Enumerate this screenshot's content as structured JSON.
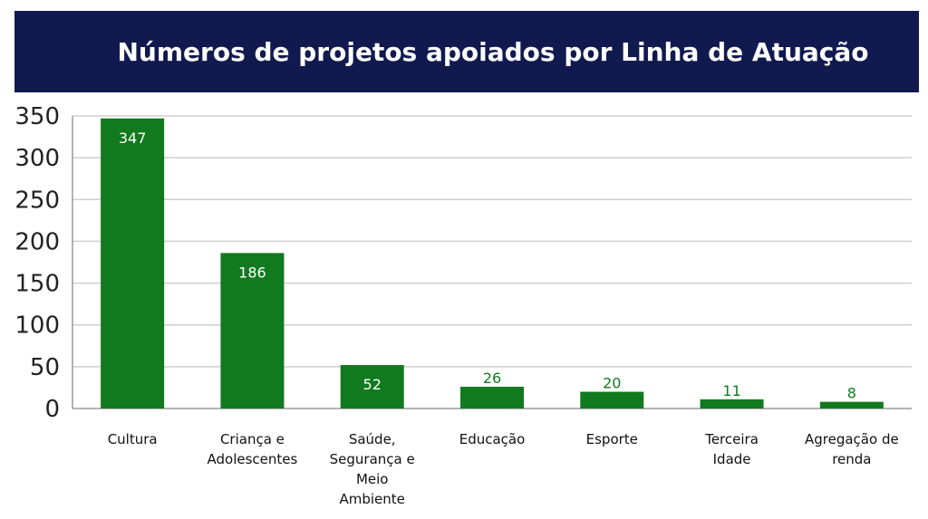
{
  "chart_data": {
    "type": "bar",
    "title": "Números de projetos apoiados por Linha de Atuação",
    "categories": [
      [
        "Cultura"
      ],
      [
        "Criança e",
        "Adolescentes"
      ],
      [
        "Saúde,",
        "Segurança e",
        "Meio",
        "Ambiente"
      ],
      [
        "Educação"
      ],
      [
        "Esporte"
      ],
      [
        "Terceira",
        "Idade"
      ],
      [
        "Agregação de",
        "renda"
      ]
    ],
    "values": [
      347,
      186,
      52,
      26,
      20,
      11,
      8
    ],
    "data_labels": [
      "347",
      "186",
      "52",
      "26",
      "20",
      "11",
      "8"
    ],
    "ylim": [
      0,
      350
    ],
    "yticks": [
      0,
      50,
      100,
      150,
      200,
      250,
      300,
      350
    ],
    "grid": true,
    "legend": "none",
    "xlabel": "",
    "ylabel": ""
  },
  "colors": {
    "bar": "#117a1e",
    "label_inside": "#ffffff",
    "label_outside": "#117a1e",
    "grid": "#cfcfcf",
    "title_bg": "#111a4f",
    "title_text": "#ffffff"
  }
}
